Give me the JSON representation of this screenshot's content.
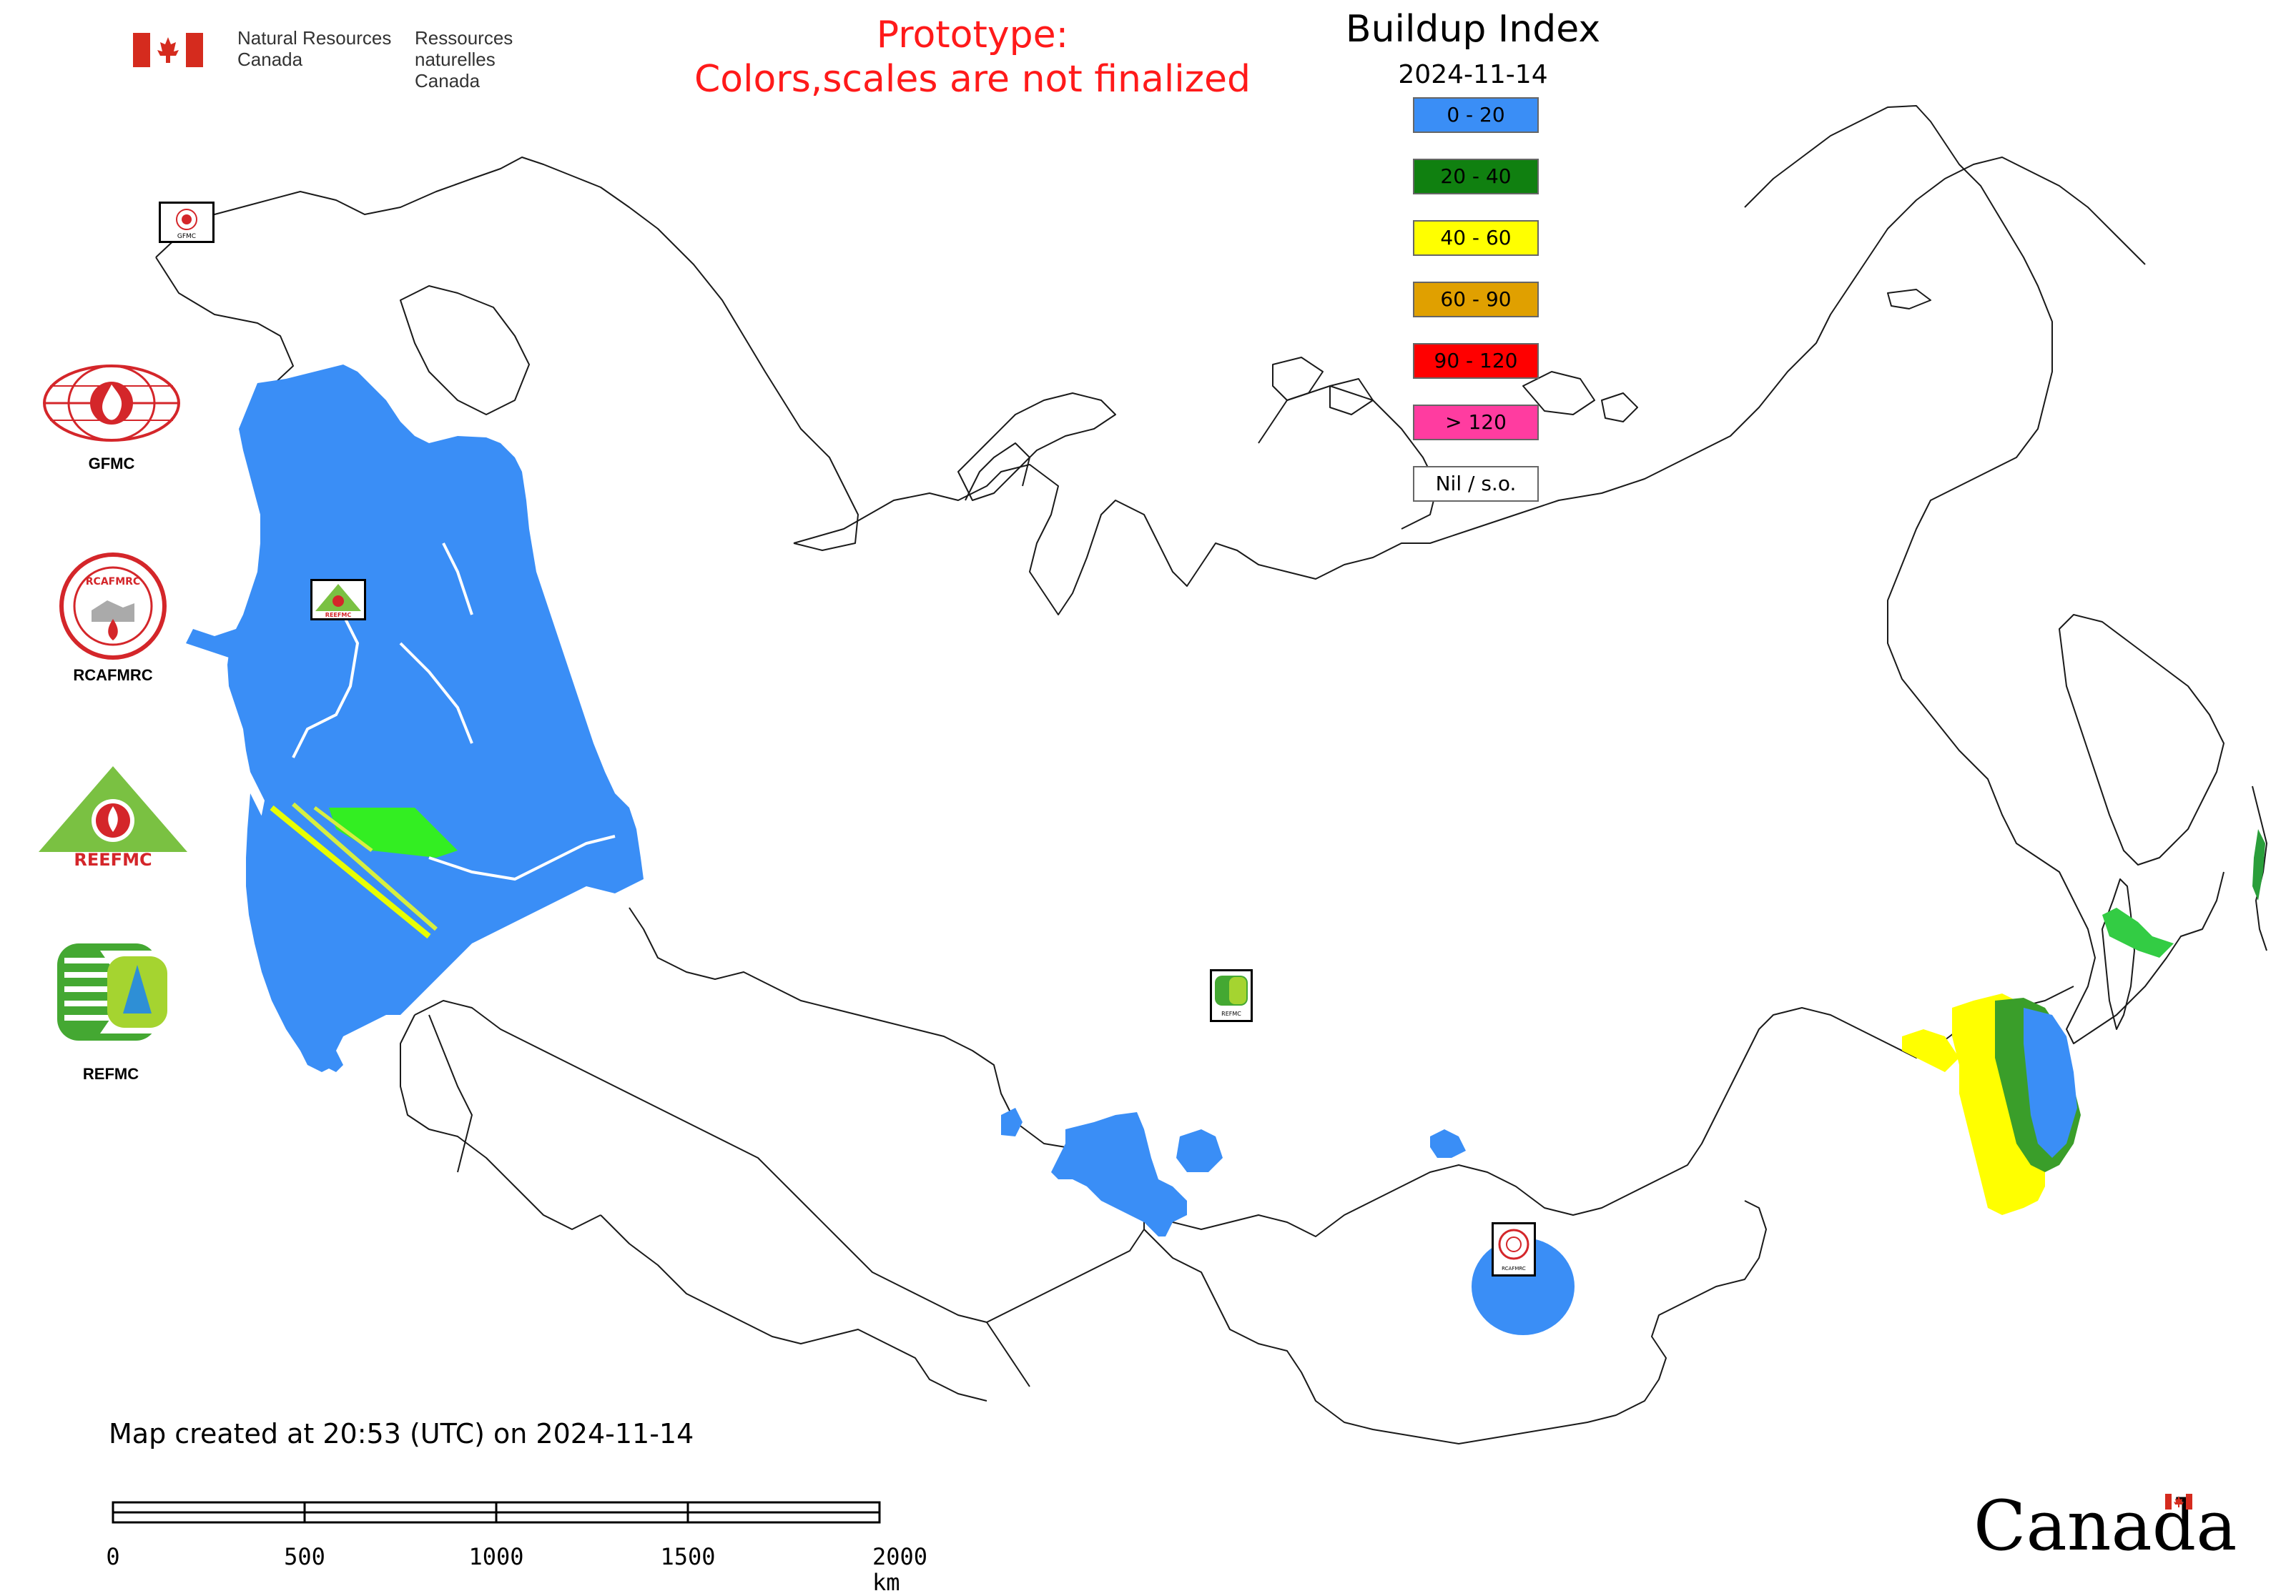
{
  "header": {
    "agency_en_line1": "Natural Resources",
    "agency_en_line2": "Canada",
    "agency_fr_line1": "Ressources naturelles",
    "agency_fr_line2": "Canada",
    "prototype_line1": "Prototype:",
    "prototype_line2": "Colors,scales are not finalized"
  },
  "legend": {
    "title": "Buildup Index",
    "date": "2024-11-14",
    "items": [
      {
        "label": "0 - 20",
        "color": "#3a8ef6"
      },
      {
        "label": "20 - 40",
        "color": "#108010"
      },
      {
        "label": "40 - 60",
        "color": "#ffff00"
      },
      {
        "label": "60 - 90",
        "color": "#e0a000"
      },
      {
        "label": "90 - 120",
        "color": "#ff0000"
      },
      {
        "label": "> 120",
        "color": "#ff3ca0"
      },
      {
        "label": "Nil / s.o.",
        "color": "#ffffff"
      }
    ]
  },
  "logos": [
    {
      "name": "GFMC",
      "caption": "GFMC"
    },
    {
      "name": "RCAFMRC",
      "caption": "RCAFMRC"
    },
    {
      "name": "REEFMC",
      "caption": ""
    },
    {
      "name": "REFMC",
      "caption": "REFMC"
    }
  ],
  "map_markers": [
    {
      "name": "GFMC",
      "label": "GFMC"
    },
    {
      "name": "REEFMC",
      "label": "REEFMC"
    },
    {
      "name": "REFMC",
      "label": "REFMC"
    },
    {
      "name": "RCAFMRC",
      "label": "RCAFMRC"
    }
  ],
  "footer": {
    "created": "Map created at 20:53 (UTC) on 2024-11-14",
    "scale_ticks": [
      "0",
      "500",
      "1000",
      "1500",
      "2000 km"
    ],
    "wordmark": "Canada"
  },
  "colors": {
    "low": "#3a8ef6",
    "green": "#108010",
    "yellow": "#ffff00",
    "bright_green": "#33ee22",
    "title_red": "#ff1a1a",
    "logo_red": "#d4262a",
    "logo_green": "#44a832"
  }
}
